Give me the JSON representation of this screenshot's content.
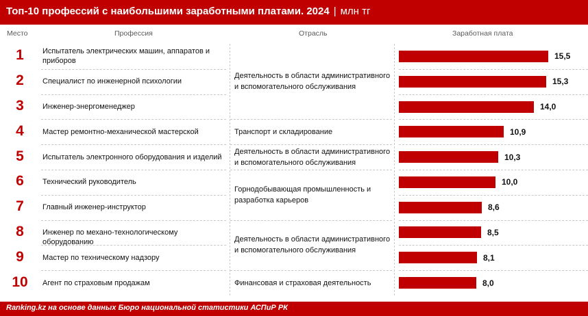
{
  "header": {
    "title": "Топ-10 профессий с наибольшими заработными платами. 2024",
    "separator": "|",
    "unit": "млн тг"
  },
  "columns": {
    "rank": "Место",
    "profession": "Профессия",
    "industry": "Отрасль",
    "salary": "Заработная плата"
  },
  "chart_data": {
    "type": "bar",
    "orientation": "horizontal",
    "title": "Топ-10 профессий с наибольшими заработными платами. 2024",
    "unit": "млн тг",
    "ranks": [
      "1",
      "2",
      "3",
      "4",
      "5",
      "6",
      "7",
      "8",
      "9",
      "10"
    ],
    "categories": [
      "Испытатель электрических машин, аппаратов и приборов",
      "Специалист по инженерной психологии",
      "Инженер-энергоменеджер",
      "Мастер ремонтно-механической мастерской",
      "Испытатель электронного оборудования и изделий",
      "Технический руководитель",
      "Главный инженер-инструктор",
      "Инженер по механо-технологическому оборудованию",
      "Мастер по техническому надзору",
      "Агент по страховым продажам"
    ],
    "values": [
      15.5,
      15.3,
      14.0,
      10.9,
      10.3,
      10.0,
      8.6,
      8.5,
      8.1,
      8.0
    ],
    "value_labels": [
      "15,5",
      "15,3",
      "14,0",
      "10,9",
      "10,3",
      "10,0",
      "8,6",
      "8,5",
      "8,1",
      "8,0"
    ],
    "industries": [
      {
        "label": "Деятельность в области административного и вспомогательного обслуживания",
        "rows": [
          1,
          3
        ]
      },
      {
        "label": "Транспорт и складирование",
        "rows": [
          4,
          4
        ]
      },
      {
        "label": "Деятельность в области административного и вспомогательного обслуживания",
        "rows": [
          5,
          5
        ]
      },
      {
        "label": "Горнодобывающая промышленность и разработка карьеров",
        "rows": [
          6,
          7
        ]
      },
      {
        "label": "Деятельность в области административного и вспомогательного обслуживания",
        "rows": [
          8,
          9
        ]
      },
      {
        "label": "Финансовая и страховая деятельность",
        "rows": [
          10,
          10
        ]
      }
    ],
    "bar_color": "#c00000"
  },
  "footer": {
    "source": "Ranking.kz на основе данных Бюро национальной статистики АСПиР РК"
  }
}
